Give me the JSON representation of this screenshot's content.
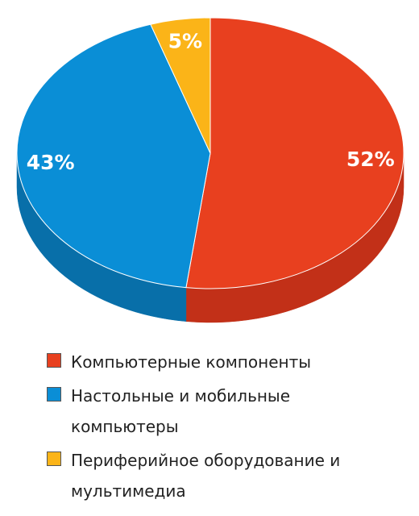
{
  "chart_data": {
    "type": "pie",
    "categories": [
      "Компьютерные компоненты",
      "Настольные и мобильные компьютеры",
      "Периферийное оборудование и мультимедиа"
    ],
    "values": [
      52,
      43,
      5
    ],
    "value_labels": [
      "52%",
      "43%",
      "5%"
    ],
    "colors": [
      "#e8401f",
      "#0a8ed6",
      "#fbb418"
    ],
    "side_colors": [
      "#c23018",
      "#086fa9",
      "#d8950c"
    ]
  }
}
